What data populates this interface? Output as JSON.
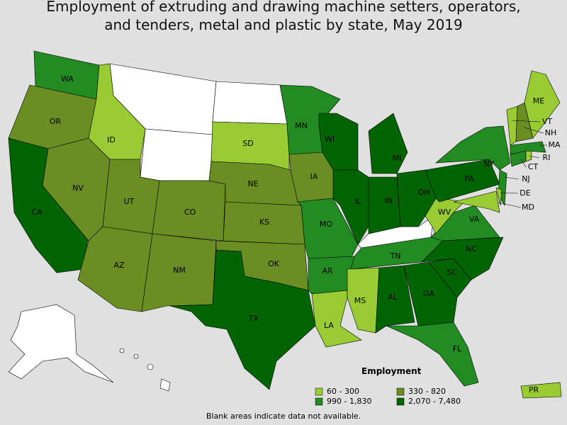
{
  "title": [
    "Employment of extruding and drawing machine setters, operators,",
    "and tenders, metal and plastic by state, May 2019"
  ],
  "legend": {
    "title": "Employment",
    "items": [
      {
        "label": "60 - 300",
        "color": "#99cc33"
      },
      {
        "label": "330 - 820",
        "color": "#6b8e23"
      },
      {
        "label": "990 - 1,830",
        "color": "#228b22"
      },
      {
        "label": "2,070 - 7,480",
        "color": "#006400"
      }
    ]
  },
  "states": [
    {
      "label": "WA",
      "class": 2
    },
    {
      "label": "OR",
      "class": 1
    },
    {
      "label": "CA",
      "class": 3
    },
    {
      "label": "ID",
      "class": 0
    },
    {
      "label": "NV",
      "class": 1
    },
    {
      "label": "UT",
      "class": 1
    },
    {
      "label": "AZ",
      "class": 1
    },
    {
      "label": "CO",
      "class": 1
    },
    {
      "label": "NM",
      "class": 1
    },
    {
      "label": "SD",
      "class": 0
    },
    {
      "label": "NE",
      "class": 1
    },
    {
      "label": "KS",
      "class": 1
    },
    {
      "label": "OK",
      "class": 1
    },
    {
      "label": "TX",
      "class": 3
    },
    {
      "label": "MN",
      "class": 2
    },
    {
      "label": "IA",
      "class": 1
    },
    {
      "label": "MO",
      "class": 2
    },
    {
      "label": "AR",
      "class": 2
    },
    {
      "label": "LA",
      "class": 0
    },
    {
      "label": "WI",
      "class": 3
    },
    {
      "label": "IL",
      "class": 3
    },
    {
      "label": "MI",
      "class": 3
    },
    {
      "label": "IN",
      "class": 3
    },
    {
      "label": "OH",
      "class": 3
    },
    {
      "label": "TN",
      "class": 2
    },
    {
      "label": "MS",
      "class": 0
    },
    {
      "label": "AL",
      "class": 3
    },
    {
      "label": "GA",
      "class": 3
    },
    {
      "label": "FL",
      "class": 2
    },
    {
      "label": "SC",
      "class": 3
    },
    {
      "label": "NC",
      "class": 3
    },
    {
      "label": "VA",
      "class": 2
    },
    {
      "label": "WV",
      "class": 0
    },
    {
      "label": "PA",
      "class": 3
    },
    {
      "label": "NY",
      "class": 2
    },
    {
      "label": "NJ",
      "class": 2
    },
    {
      "label": "DE",
      "class": 0
    },
    {
      "label": "MD",
      "class": 0
    },
    {
      "label": "CT",
      "class": 2
    },
    {
      "label": "RI",
      "class": 0
    },
    {
      "label": "MA",
      "class": 2
    },
    {
      "label": "VT",
      "class": 0
    },
    {
      "label": "NH",
      "class": 1
    },
    {
      "label": "ME",
      "class": 0
    },
    {
      "label": "PR",
      "class": 0
    }
  ],
  "footnote": "Blank areas indicate data not available."
}
